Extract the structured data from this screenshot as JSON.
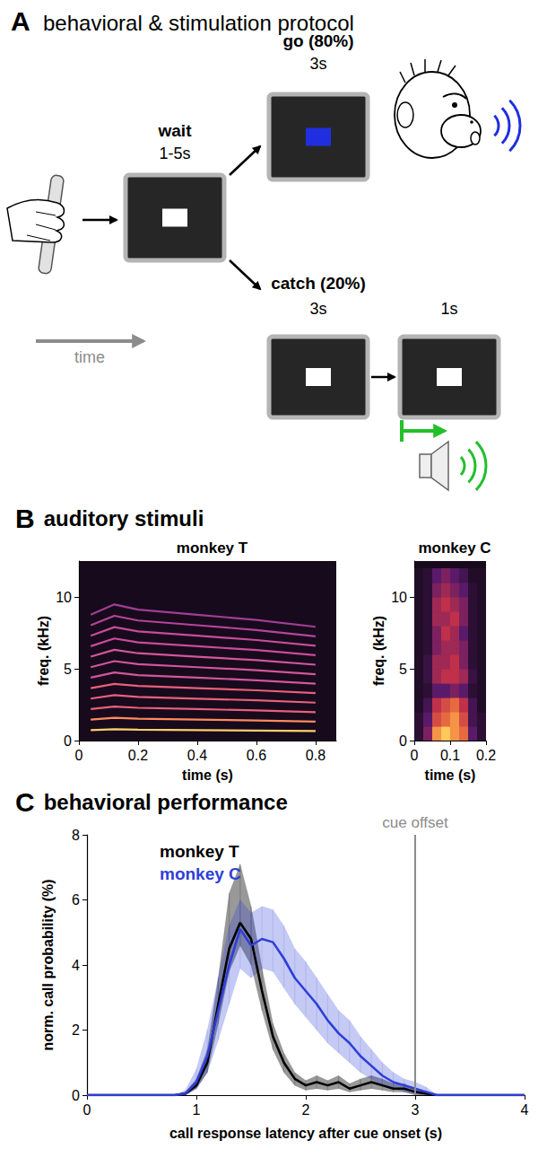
{
  "panel_a": {
    "letter": "A",
    "title": "behavioral & stimulation protocol",
    "time_label": "time",
    "wait": {
      "label": "wait",
      "duration": "1-5s"
    },
    "go": {
      "label": "go (80%)",
      "duration": "3s"
    },
    "catch": {
      "label": "catch (20%)",
      "duration": "3s",
      "tone_duration": "1s"
    }
  },
  "panel_b": {
    "letter": "B",
    "title": "auditory stimuli"
  },
  "panel_c": {
    "letter": "C",
    "title": "behavioral performance"
  },
  "chart_data": [
    {
      "type": "line",
      "title": "monkey T",
      "xlabel": "time (s)",
      "ylabel": "freq. (kHz)",
      "xlim": [
        0,
        0.87
      ],
      "xticks": [
        0,
        0.2,
        0.4,
        0.6,
        0.8
      ],
      "ylim": [
        0,
        12.5
      ],
      "yticks": [
        0,
        5,
        10
      ],
      "grid": false,
      "x": [
        0.04,
        0.12,
        0.2,
        0.4,
        0.6,
        0.8
      ],
      "series": [
        {
          "color": "#ffcf6b",
          "values": [
            0.73,
            0.79,
            0.76,
            0.73,
            0.7,
            0.66
          ]
        },
        {
          "color": "#ff8a5c",
          "values": [
            1.46,
            1.58,
            1.52,
            1.46,
            1.4,
            1.32
          ]
        },
        {
          "color": "#e8607a",
          "values": [
            2.19,
            2.37,
            2.28,
            2.19,
            2.1,
            1.98
          ]
        },
        {
          "color": "#e8607a",
          "values": [
            2.92,
            3.16,
            3.04,
            2.92,
            2.8,
            2.64
          ]
        },
        {
          "color": "#e8607a",
          "values": [
            3.65,
            3.95,
            3.8,
            3.65,
            3.5,
            3.3
          ]
        },
        {
          "color": "#d2569a",
          "values": [
            4.38,
            4.74,
            4.56,
            4.38,
            4.2,
            3.96
          ]
        },
        {
          "color": "#d2569a",
          "values": [
            5.11,
            5.53,
            5.32,
            5.11,
            4.9,
            4.62
          ]
        },
        {
          "color": "#d2569a",
          "values": [
            5.84,
            6.32,
            6.08,
            5.84,
            5.6,
            5.28
          ]
        },
        {
          "color": "#c84c9a",
          "values": [
            6.57,
            7.11,
            6.84,
            6.57,
            6.3,
            5.94
          ]
        },
        {
          "color": "#c84c9a",
          "values": [
            7.3,
            7.9,
            7.6,
            7.3,
            7.0,
            6.6
          ]
        },
        {
          "color": "#b4449a",
          "values": [
            8.03,
            8.69,
            8.36,
            8.03,
            7.7,
            7.26
          ]
        },
        {
          "color": "#a03e94",
          "values": [
            8.76,
            9.48,
            9.12,
            8.76,
            8.4,
            7.92
          ]
        }
      ]
    },
    {
      "type": "heatmap",
      "title": "monkey C",
      "xlabel": "time (s)",
      "ylabel": "freq. (kHz)",
      "xlim": [
        0,
        0.2
      ],
      "xticks": [
        0,
        0.1,
        0.2
      ],
      "ylim": [
        0,
        12.5
      ],
      "yticks": [
        0,
        5,
        10
      ],
      "grid": false,
      "x_bins": [
        0,
        0.025,
        0.05,
        0.075,
        0.1,
        0.125,
        0.15,
        0.175,
        0.2
      ],
      "y_bins": [
        0,
        1,
        2,
        3,
        4,
        5,
        6,
        7,
        8,
        9,
        10,
        11,
        12
      ],
      "clim": [
        0,
        1
      ],
      "cells": [
        [
          0.1,
          0.4,
          0.9,
          1.0,
          0.9,
          0.8,
          0.3,
          0.1
        ],
        [
          0.1,
          0.3,
          0.7,
          0.8,
          0.9,
          0.7,
          0.2,
          0.1
        ],
        [
          0.05,
          0.2,
          0.6,
          0.7,
          0.8,
          0.6,
          0.2,
          0.05
        ],
        [
          0.05,
          0.1,
          0.3,
          0.3,
          0.4,
          0.3,
          0.1,
          0.05
        ],
        [
          0.05,
          0.15,
          0.5,
          0.6,
          0.6,
          0.5,
          0.15,
          0.05
        ],
        [
          0.05,
          0.15,
          0.5,
          0.5,
          0.6,
          0.4,
          0.1,
          0.05
        ],
        [
          0.05,
          0.1,
          0.4,
          0.5,
          0.5,
          0.4,
          0.1,
          0.05
        ],
        [
          0.05,
          0.1,
          0.4,
          0.6,
          0.5,
          0.3,
          0.1,
          0.05
        ],
        [
          0.05,
          0.1,
          0.5,
          0.5,
          0.6,
          0.4,
          0.1,
          0.05
        ],
        [
          0.05,
          0.1,
          0.5,
          0.6,
          0.5,
          0.4,
          0.1,
          0.05
        ],
        [
          0.05,
          0.1,
          0.4,
          0.5,
          0.4,
          0.3,
          0.1,
          0.05
        ],
        [
          0.05,
          0.1,
          0.3,
          0.4,
          0.3,
          0.2,
          0.05,
          0.05
        ]
      ]
    },
    {
      "type": "line",
      "xlabel": "call response latency after cue onset (s)",
      "ylabel": "norm. call probability (%)",
      "xlim": [
        0,
        4
      ],
      "xticks": [
        0,
        1,
        2,
        3,
        4
      ],
      "ylim": [
        0,
        8
      ],
      "yticks": [
        0,
        2,
        4,
        6,
        8
      ],
      "grid": false,
      "legend": "upper left",
      "annotations": [
        {
          "text": "cue offset",
          "x": 3
        }
      ],
      "x": [
        0,
        0.1,
        0.2,
        0.3,
        0.4,
        0.5,
        0.6,
        0.7,
        0.8,
        0.9,
        1.0,
        1.1,
        1.2,
        1.3,
        1.4,
        1.5,
        1.6,
        1.7,
        1.8,
        1.9,
        2.0,
        2.1,
        2.2,
        2.3,
        2.4,
        2.5,
        2.6,
        2.7,
        2.8,
        2.9,
        3.0,
        3.1,
        3.2,
        3.3,
        3.4,
        3.5,
        3.6,
        3.7,
        3.8,
        3.9,
        4.0
      ],
      "series": [
        {
          "name": "monkey T",
          "color": "#000000",
          "values": [
            0,
            0,
            0,
            0,
            0,
            0,
            0,
            0,
            0,
            0.05,
            0.3,
            1.0,
            2.8,
            4.5,
            5.3,
            4.8,
            3.2,
            1.8,
            1.0,
            0.5,
            0.3,
            0.4,
            0.3,
            0.4,
            0.2,
            0.3,
            0.4,
            0.3,
            0.2,
            0.2,
            0.1,
            0.05,
            0,
            0,
            0,
            0,
            0,
            0,
            0,
            0,
            0
          ],
          "lower": [
            0,
            0,
            0,
            0,
            0,
            0,
            0,
            0,
            0,
            0,
            0.2,
            0.7,
            2.2,
            3.8,
            4.6,
            4.0,
            2.6,
            1.4,
            0.7,
            0.3,
            0.15,
            0.2,
            0.15,
            0.2,
            0.1,
            0.15,
            0.2,
            0.15,
            0.1,
            0.1,
            0,
            0,
            0,
            0,
            0,
            0,
            0,
            0,
            0,
            0,
            0
          ],
          "upper": [
            0,
            0,
            0,
            0,
            0,
            0,
            0,
            0,
            0,
            0.1,
            0.5,
            1.4,
            3.6,
            6.2,
            7.1,
            5.8,
            3.9,
            2.2,
            1.3,
            0.7,
            0.45,
            0.6,
            0.45,
            0.6,
            0.35,
            0.5,
            0.6,
            0.5,
            0.35,
            0.35,
            0.2,
            0.1,
            0,
            0,
            0,
            0,
            0,
            0,
            0,
            0,
            0
          ]
        },
        {
          "name": "monkey C",
          "color": "#2e3fd6",
          "values": [
            0,
            0,
            0,
            0,
            0,
            0,
            0,
            0,
            0,
            0.05,
            0.4,
            1.2,
            2.6,
            4.0,
            5.1,
            4.6,
            4.8,
            4.7,
            4.2,
            3.6,
            3.2,
            2.8,
            2.3,
            1.9,
            1.6,
            1.2,
            0.9,
            0.6,
            0.4,
            0.3,
            0.2,
            0.1,
            0,
            0,
            0,
            0,
            0,
            0,
            0,
            0,
            0
          ],
          "lower": [
            0,
            0,
            0,
            0,
            0,
            0,
            0,
            0,
            0,
            0,
            0.2,
            0.7,
            1.7,
            2.8,
            3.9,
            3.6,
            3.9,
            3.8,
            3.3,
            2.8,
            2.4,
            2.0,
            1.6,
            1.3,
            1.0,
            0.7,
            0.5,
            0.3,
            0.2,
            0.1,
            0.05,
            0,
            0,
            0,
            0,
            0,
            0,
            0,
            0,
            0,
            0
          ],
          "upper": [
            0,
            0,
            0,
            0,
            0,
            0,
            0,
            0,
            0,
            0.15,
            0.8,
            2.0,
            3.6,
            5.2,
            6.0,
            5.6,
            5.8,
            5.7,
            5.2,
            4.5,
            4.1,
            3.6,
            3.1,
            2.6,
            2.3,
            1.8,
            1.4,
            1.0,
            0.7,
            0.5,
            0.4,
            0.25,
            0,
            0,
            0,
            0,
            0,
            0,
            0,
            0,
            0
          ]
        }
      ]
    }
  ]
}
